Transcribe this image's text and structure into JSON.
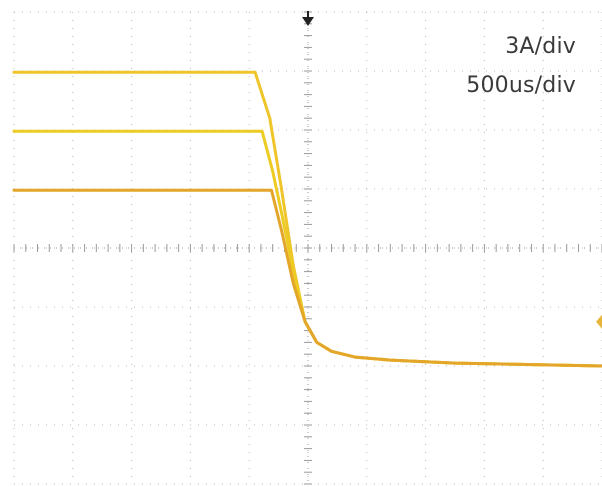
{
  "scale": {
    "current_per_div": "3A/div",
    "time_per_div": "500us/div"
  },
  "colors": {
    "grid": "#b9b9b9",
    "trace_top": "#efc52a",
    "trace_mid": "#eccb22",
    "trace_low": "#e4a62a",
    "trigger_marker": "#222222",
    "level_marker": "#e7b53a"
  },
  "icons": {
    "trigger": "down-arrow-icon",
    "level": "level-marker-icon"
  },
  "chart_data": {
    "type": "line",
    "title": "",
    "xlabel": "",
    "ylabel": "",
    "grid": true,
    "divisions": {
      "x": 10,
      "y": 8
    },
    "xlim_div": [
      -5,
      5
    ],
    "ylim_div": [
      -4,
      4
    ],
    "series": [
      {
        "x": [
          -5,
          -0.9,
          -0.65,
          -0.45,
          -0.25,
          -0.05,
          0.15,
          0.4,
          0.8,
          1.4,
          2.5,
          5
        ],
        "y": [
          2.98,
          2.98,
          2.2,
          1.0,
          -0.3,
          -1.25,
          -1.6,
          -1.75,
          -1.85,
          -1.9,
          -1.95,
          -2.0
        ]
      },
      {
        "x": [
          -5,
          -0.78,
          -0.6,
          -0.45,
          -0.25,
          -0.05,
          0.15,
          0.4,
          0.8,
          1.4,
          2.5,
          5
        ],
        "y": [
          1.98,
          1.98,
          1.3,
          0.6,
          -0.4,
          -1.25,
          -1.6,
          -1.75,
          -1.85,
          -1.9,
          -1.95,
          -2.0
        ]
      },
      {
        "x": [
          -5,
          -0.62,
          -0.45,
          -0.25,
          -0.05,
          0.15,
          0.4,
          0.8,
          1.4,
          2.5,
          5
        ],
        "y": [
          0.98,
          0.98,
          0.3,
          -0.6,
          -1.25,
          -1.6,
          -1.75,
          -1.85,
          -1.9,
          -1.95,
          -2.0
        ]
      }
    ]
  }
}
